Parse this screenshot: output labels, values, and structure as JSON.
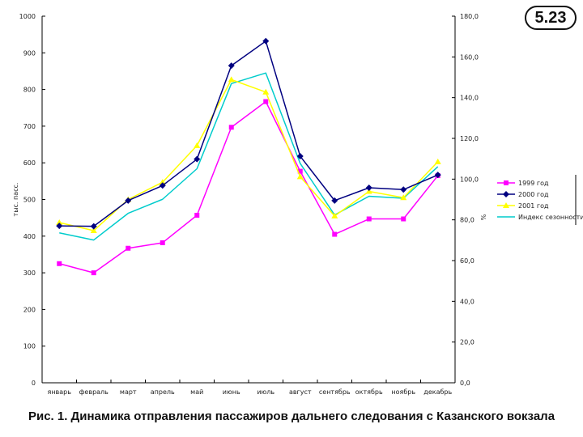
{
  "slide_number": "5.23",
  "caption": "Рис. 1. Динамика отправления пассажиров дальнего следования с Казанского вокзала",
  "chart_data": {
    "type": "line",
    "categories": [
      "январь",
      "февраль",
      "март",
      "апрель",
      "май",
      "июнь",
      "июль",
      "август",
      "сентябрь",
      "октябрь",
      "ноябрь",
      "декабрь"
    ],
    "ylabel": "тыс. пасс.",
    "y2label": "%",
    "ylim": [
      0,
      1000
    ],
    "y2lim": [
      0,
      180
    ],
    "yticks": [
      "0",
      "100",
      "200",
      "300",
      "400",
      "500",
      "600",
      "700",
      "800",
      "900",
      "1000"
    ],
    "y2ticks": [
      "0,0",
      "20,0",
      "40,0",
      "60,0",
      "80,0",
      "100,0",
      "120,0",
      "140,0",
      "160,0",
      "180,0"
    ],
    "grid": false,
    "legend_position": "right",
    "series": [
      {
        "name": "1999 год",
        "axis": "left",
        "color": "#ff00ff",
        "marker": "square",
        "values": [
          325,
          300,
          367,
          382,
          457,
          697,
          767,
          577,
          405,
          447,
          447,
          565
        ]
      },
      {
        "name": "2000 год",
        "axis": "left",
        "color": "#000080",
        "marker": "diamond",
        "values": [
          428,
          427,
          497,
          538,
          610,
          865,
          932,
          618,
          497,
          532,
          527,
          567
        ]
      },
      {
        "name": "2001 год",
        "axis": "left",
        "color": "#ffff00",
        "marker": "triangle",
        "values": [
          437,
          415,
          500,
          547,
          647,
          827,
          793,
          562,
          455,
          522,
          505,
          603
        ]
      },
      {
        "name": "Индекс сезонности",
        "axis": "right",
        "color": "#00cccc",
        "marker": "none",
        "values": [
          73.6,
          70.1,
          83.2,
          90.1,
          105.1,
          146.9,
          152.1,
          107.7,
          82.4,
          91.6,
          90.6,
          106.1
        ]
      }
    ]
  }
}
